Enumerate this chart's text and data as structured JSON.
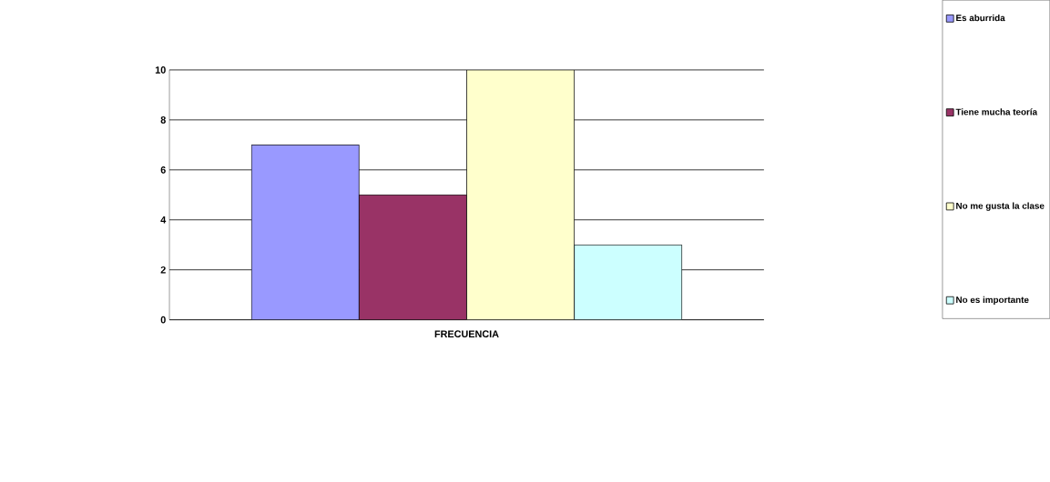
{
  "chart_data": {
    "type": "bar",
    "categories": [
      "FRECUENCIA"
    ],
    "series": [
      {
        "name": "Es aburrida",
        "color": "#9999ff",
        "values": [
          7
        ]
      },
      {
        "name": "Tiene mucha teoría",
        "color": "#993366",
        "values": [
          5
        ]
      },
      {
        "name": "No me gusta la clase",
        "color": "#ffffcc",
        "values": [
          10
        ]
      },
      {
        "name": "No es importante",
        "color": "#ccffff",
        "values": [
          3
        ]
      }
    ],
    "ylim": [
      0,
      10
    ],
    "yticks": [
      0,
      2,
      4,
      6,
      8,
      10
    ],
    "grid": "y",
    "legend": "right"
  }
}
